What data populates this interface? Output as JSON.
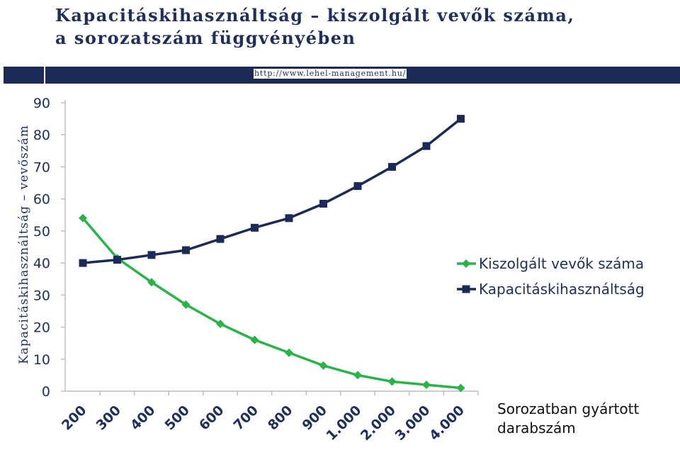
{
  "header": {
    "title_line1": "Kapacitáskihasználtság – kiszolgált vevők száma,",
    "title_line2": "a sorozatszám függvényében",
    "url": "http://www.lehel-management.hu/"
  },
  "colors": {
    "navy": "#1b2a57",
    "green": "#2ab34a",
    "text": "#1e2f5c"
  },
  "chart_data": {
    "type": "line",
    "categories": [
      "200",
      "300",
      "400",
      "500",
      "600",
      "700",
      "800",
      "900",
      "1.000",
      "2.000",
      "3.000",
      "4.000"
    ],
    "series": [
      {
        "name": "Kiszolgált vevők száma",
        "color": "#2ab34a",
        "marker": "diamond",
        "values": [
          54,
          41.5,
          34,
          27,
          21,
          16,
          12,
          8,
          5,
          3,
          2,
          1
        ]
      },
      {
        "name": "Kapacitáskihasználtság",
        "color": "#1b2a57",
        "marker": "square",
        "values": [
          40,
          41,
          42.5,
          44,
          47.5,
          51,
          54,
          58.5,
          64,
          70,
          76.5,
          85
        ]
      }
    ],
    "ylim": [
      0,
      90
    ],
    "yticks": [
      0,
      10,
      20,
      30,
      40,
      50,
      60,
      70,
      80,
      90
    ],
    "ylabel": "Kapacitáskihasználtság – vevőszám",
    "xlabel_line1": "Sorozatban gyártott",
    "xlabel_line2": "darabszám",
    "grid": false,
    "legend": "right"
  }
}
